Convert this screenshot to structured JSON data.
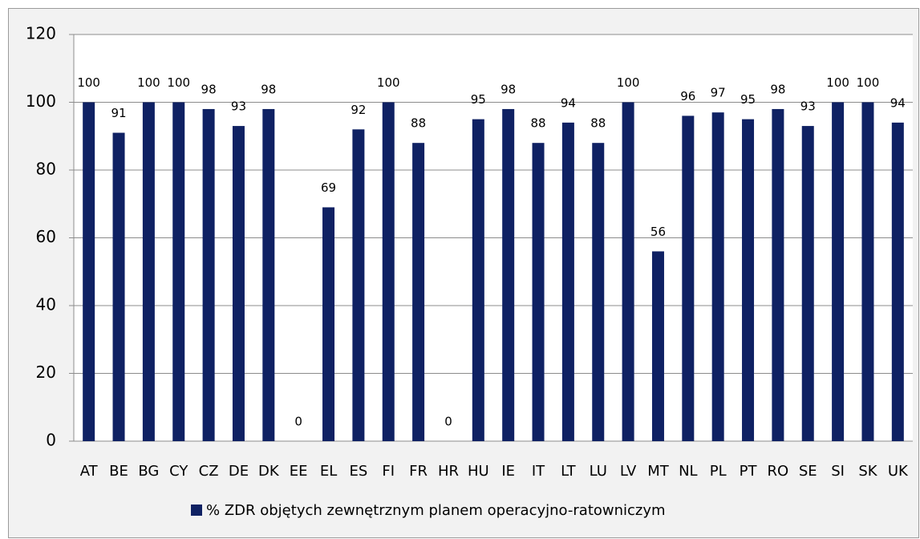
{
  "chart_data": {
    "type": "bar",
    "categories": [
      "AT",
      "BE",
      "BG",
      "CY",
      "CZ",
      "DE",
      "DK",
      "EE",
      "EL",
      "ES",
      "FI",
      "FR",
      "HR",
      "HU",
      "IE",
      "IT",
      "LT",
      "LU",
      "LV",
      "MT",
      "NL",
      "PL",
      "PT",
      "RO",
      "SE",
      "SI",
      "SK",
      "UK"
    ],
    "series": [
      {
        "name": "% ZDR objętych zewnętrznym planem operacyjno-ratowniczym",
        "color": "#0f2163",
        "values": [
          100,
          91,
          100,
          100,
          98,
          93,
          98,
          0,
          69,
          92,
          100,
          88,
          0,
          95,
          98,
          88,
          94,
          88,
          100,
          56,
          96,
          97,
          95,
          98,
          93,
          100,
          100,
          94
        ]
      }
    ],
    "ylim": [
      0,
      120
    ],
    "yticks": [
      0,
      20,
      40,
      60,
      80,
      100,
      120
    ],
    "grid": true,
    "legend": "bottom"
  }
}
